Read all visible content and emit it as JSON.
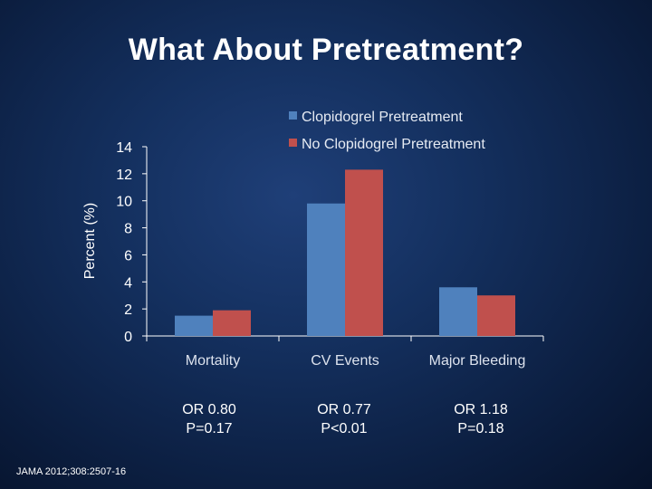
{
  "slide": {
    "title": "What About Pretreatment?",
    "citation": "JAMA 2012;308:2507-16"
  },
  "colors": {
    "clopidogrel": "#4f81bd",
    "no_clopidogrel": "#c0504d",
    "axis": "#ffffff",
    "text": "#ffffff"
  },
  "chart_data": {
    "type": "bar",
    "title": "",
    "xlabel": "",
    "ylabel": "Percent (%)",
    "ylim": [
      0,
      14
    ],
    "yticks": [
      "0",
      "2",
      "4",
      "6",
      "8",
      "10",
      "12",
      "14"
    ],
    "grid": false,
    "legend_position": "top-right",
    "categories": [
      "Mortality",
      "CV Events",
      "Major Bleeding"
    ],
    "series": [
      {
        "name": "Clopidogrel Pretreatment",
        "values": [
          1.5,
          9.8,
          3.6
        ]
      },
      {
        "name": "No Clopidogrel Pretreatment",
        "values": [
          1.9,
          12.3,
          3.0
        ]
      }
    ]
  },
  "stats": [
    {
      "or": "OR 0.80",
      "p": "P=0.17"
    },
    {
      "or": "OR 0.77",
      "p": "P<0.01"
    },
    {
      "or": "OR 1.18",
      "p": "P=0.18"
    }
  ]
}
